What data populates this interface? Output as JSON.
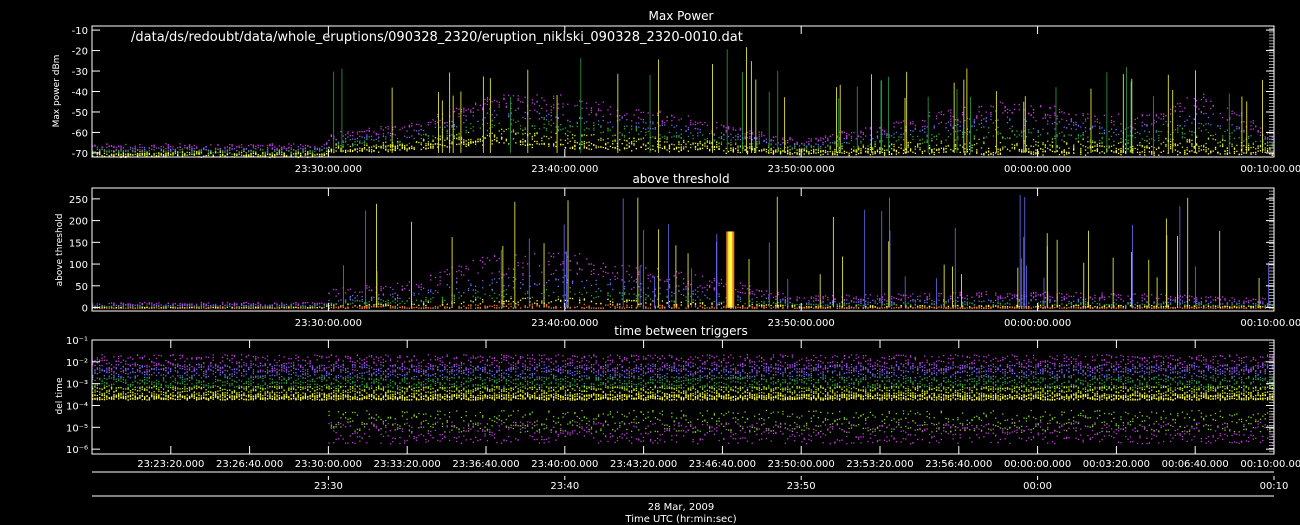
{
  "figure": {
    "path_label": "/data/ds/redoubt/data/whole_eruptions/090328_2320/eruption_nikiski_090328_2320-0010.dat",
    "date_label": "28 Mar, 2009",
    "xaxis_title": "Time UTC (hr:min:sec)"
  },
  "colors": {
    "background": "#000000",
    "axes": "#ffffff",
    "density_scale": [
      "#8a1aa8",
      "#c23adf",
      "#6b6cf0",
      "#2aa046",
      "#7ed321",
      "#c9e61a",
      "#ffff40",
      "#f07c1e",
      "#d02010"
    ]
  },
  "chart_data": [
    {
      "type": "scatter",
      "title": "Max Power",
      "ylabel": "Max power dBm",
      "ylim": [
        -72,
        -8
      ],
      "yticks": [
        -10,
        -20,
        -30,
        -40,
        -50,
        -60,
        -70
      ],
      "xlim": [
        "23:20:00",
        "00:10:00"
      ],
      "xtick_labels": [
        "23:30:00.000",
        "23:40:00.000",
        "23:50:00.000",
        "00:00:00.000",
        "00:10:00.000"
      ],
      "envelope": [
        {
          "t": "23:20:00",
          "floor": -71,
          "peak": -66
        },
        {
          "t": "23:29:50",
          "floor": -71,
          "peak": -66
        },
        {
          "t": "23:30:00",
          "floor": -69,
          "peak": -60
        },
        {
          "t": "23:33:20",
          "floor": -68,
          "peak": -56
        },
        {
          "t": "23:35:30",
          "floor": -66,
          "peak": -48
        },
        {
          "t": "23:37:00",
          "floor": -65,
          "peak": -41
        },
        {
          "t": "23:40:00",
          "floor": -67,
          "peak": -42
        },
        {
          "t": "23:43:20",
          "floor": -68,
          "peak": -48
        },
        {
          "t": "23:46:40",
          "floor": -69,
          "peak": -56
        },
        {
          "t": "23:50:00",
          "floor": -70,
          "peak": -64
        },
        {
          "t": "23:58:00",
          "floor": -70,
          "peak": -44
        },
        {
          "t": "00:04:00",
          "floor": -70,
          "peak": -52
        },
        {
          "t": "00:07:00",
          "floor": -70,
          "peak": -40
        },
        {
          "t": "00:10:00",
          "floor": -70,
          "peak": -60
        }
      ]
    },
    {
      "type": "scatter",
      "title": "above threshold",
      "ylabel": "above threshold",
      "ylim": [
        -8,
        275
      ],
      "yticks": [
        0,
        50,
        100,
        150,
        200,
        250
      ],
      "xlim": [
        "23:20:00",
        "00:10:00"
      ],
      "xtick_labels": [
        "23:30:00.000",
        "23:40:00.000",
        "23:50:00.000",
        "00:00:00.000",
        "00:10:00.000"
      ],
      "envelope": [
        {
          "t": "23:20:00",
          "floor": 0,
          "peak": 12
        },
        {
          "t": "23:29:50",
          "floor": 0,
          "peak": 12
        },
        {
          "t": "23:30:00",
          "floor": 0,
          "peak": 40
        },
        {
          "t": "23:33:20",
          "floor": 0,
          "peak": 55
        },
        {
          "t": "23:36:40",
          "floor": 0,
          "peak": 110
        },
        {
          "t": "23:40:00",
          "floor": 0,
          "peak": 120
        },
        {
          "t": "23:43:20",
          "floor": 0,
          "peak": 90
        },
        {
          "t": "23:46:40",
          "floor": 0,
          "peak": 60
        },
        {
          "t": "23:50:00",
          "floor": 0,
          "peak": 25
        },
        {
          "t": "23:58:00",
          "floor": 0,
          "peak": 35
        },
        {
          "t": "00:05:00",
          "floor": 0,
          "peak": 30
        },
        {
          "t": "00:10:00",
          "floor": 0,
          "peak": 20
        }
      ],
      "annotations": [
        {
          "t": "23:47:00",
          "value": 175,
          "note": ""
        }
      ]
    },
    {
      "type": "scatter",
      "title": "time between triggers",
      "ylabel": "del time",
      "yscale": "log",
      "ylim": [
        6e-07,
        0.1
      ],
      "yticks": [
        0.1,
        0.01,
        0.001,
        0.0001,
        1e-05,
        1e-06
      ],
      "ytick_labels": [
        "10⁻¹",
        "10⁻²",
        "10⁻³",
        "10⁻⁴",
        "10⁻⁵",
        "10⁻⁶"
      ],
      "xlim": [
        "23:20:00",
        "00:10:00"
      ],
      "xtick_labels": [
        "23:23:20.000",
        "23:26:40.000",
        "23:30:00.000",
        "23:33:20.000",
        "23:36:40.000",
        "23:40:00.000",
        "23:43:20.000",
        "23:46:40.000",
        "23:50:00.000",
        "23:53:20.000",
        "23:56:40.000",
        "00:00:00.000",
        "00:03:20.000",
        "00:06:40.000",
        "00:10:00.000"
      ]
    }
  ],
  "secondary_axis": {
    "xtick_labels": [
      "23:30",
      "23:40",
      "23:50",
      "00:00",
      "00:10"
    ]
  }
}
